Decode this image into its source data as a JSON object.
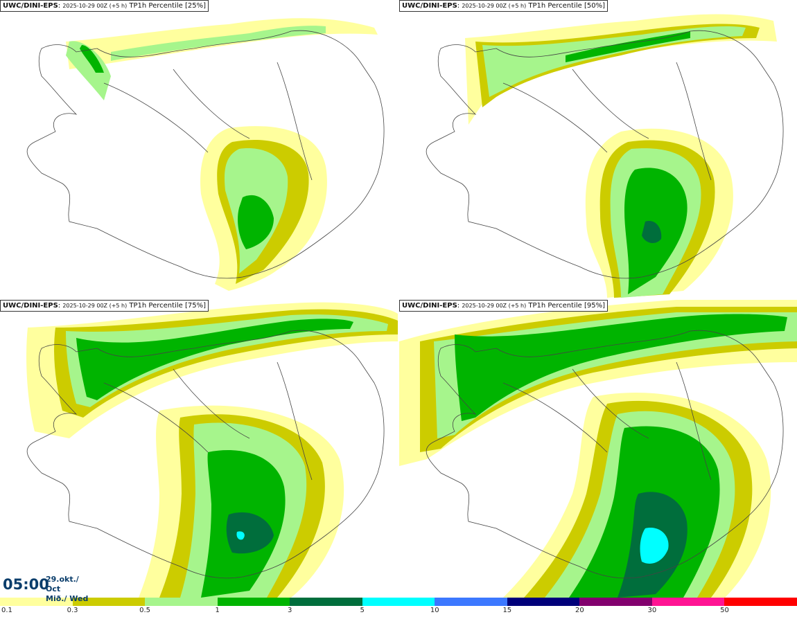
{
  "panels": [
    {
      "model": "UWC/DINI-EPS",
      "run": "2025-10-29 00Z (+5 h)",
      "field": "TP1h Percentile [25%]"
    },
    {
      "model": "UWC/DINI-EPS",
      "run": "2025-10-29 00Z (+5 h)",
      "field": "TP1h Percentile [50%]"
    },
    {
      "model": "UWC/DINI-EPS",
      "run": "2025-10-29 00Z (+5 h)",
      "field": "TP1h Percentile [75%]"
    },
    {
      "model": "UWC/DINI-EPS",
      "run": "2025-10-29 00Z (+5 h)",
      "field": "TP1h Percentile [95%]"
    }
  ],
  "valid_time": {
    "time": "05:00",
    "date_line1": "29.okt./ Oct",
    "date_line2": "Mið./ Wed"
  },
  "colorbar": {
    "colors": [
      "#ffff9e",
      "#cccc00",
      "#a6f58c",
      "#00b400",
      "#006e3c",
      "#00ffff",
      "#3c78ff",
      "#00007a",
      "#82006e",
      "#ff1493",
      "#ff0000"
    ],
    "ticks": [
      "0.1",
      "0.3",
      "0.5",
      "1",
      "3",
      "5",
      "10",
      "15",
      "20",
      "30",
      "50"
    ]
  }
}
